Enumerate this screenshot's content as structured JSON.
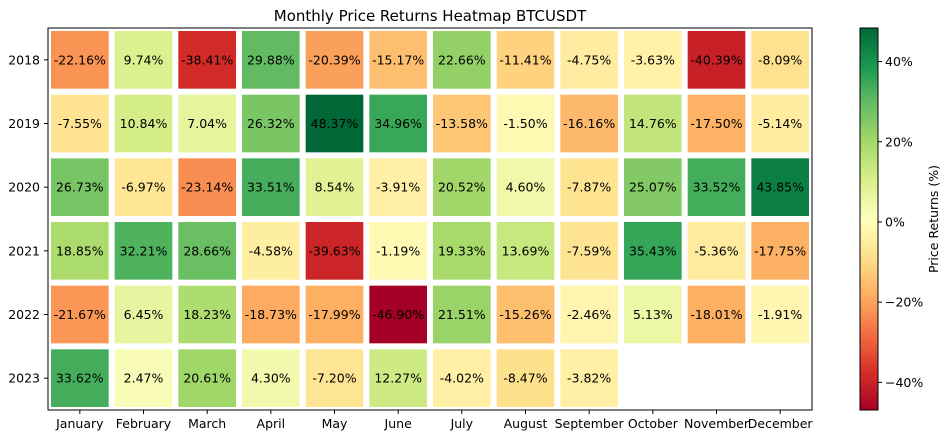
{
  "chart_data": {
    "type": "heatmap",
    "title": "Monthly Price Returns Heatmap BTCUSDT",
    "xlabel": "",
    "ylabel": "",
    "x_categories": [
      "January",
      "February",
      "March",
      "April",
      "May",
      "June",
      "July",
      "August",
      "September",
      "October",
      "November",
      "December"
    ],
    "y_categories": [
      "2018",
      "2019",
      "2020",
      "2021",
      "2022",
      "2023"
    ],
    "values": [
      [
        -22.16,
        9.74,
        -38.41,
        29.88,
        -20.39,
        -15.17,
        22.66,
        -11.41,
        -4.75,
        -3.63,
        -40.39,
        -8.09
      ],
      [
        -7.55,
        10.84,
        7.04,
        26.32,
        48.37,
        34.96,
        -13.58,
        -1.5,
        -16.16,
        14.76,
        -17.5,
        -5.14
      ],
      [
        26.73,
        -6.97,
        -23.14,
        33.51,
        8.54,
        -3.91,
        20.52,
        4.6,
        -7.87,
        25.07,
        33.52,
        43.85
      ],
      [
        18.85,
        32.21,
        28.66,
        -4.58,
        -39.63,
        -1.19,
        19.33,
        13.69,
        -7.59,
        35.43,
        -5.36,
        -17.75
      ],
      [
        -21.67,
        6.45,
        18.23,
        -18.73,
        -17.99,
        -46.9,
        21.51,
        -15.26,
        -2.46,
        5.13,
        -18.01,
        -1.91
      ],
      [
        33.62,
        2.47,
        20.61,
        4.3,
        -7.2,
        12.27,
        -4.02,
        -8.47,
        -3.82,
        null,
        null,
        null
      ]
    ],
    "cell_labels": [
      [
        "-22.16%",
        "9.74%",
        "-38.41%",
        "29.88%",
        "-20.39%",
        "-15.17%",
        "22.66%",
        "-11.41%",
        "-4.75%",
        "-3.63%",
        "-40.39%",
        "-8.09%"
      ],
      [
        "-7.55%",
        "10.84%",
        "7.04%",
        "26.32%",
        "48.37%",
        "34.96%",
        "-13.58%",
        "-1.50%",
        "-16.16%",
        "14.76%",
        "-17.50%",
        "-5.14%"
      ],
      [
        "26.73%",
        "-6.97%",
        "-23.14%",
        "33.51%",
        "8.54%",
        "-3.91%",
        "20.52%",
        "4.60%",
        "-7.87%",
        "25.07%",
        "33.52%",
        "43.85%"
      ],
      [
        "18.85%",
        "32.21%",
        "28.66%",
        "-4.58%",
        "-39.63%",
        "-1.19%",
        "19.33%",
        "13.69%",
        "-7.59%",
        "35.43%",
        "-5.36%",
        "-17.75%"
      ],
      [
        "-21.67%",
        "6.45%",
        "18.23%",
        "-18.73%",
        "-17.99%",
        "-46.90%",
        "21.51%",
        "-15.26%",
        "-2.46%",
        "5.13%",
        "-18.01%",
        "-1.91%"
      ],
      [
        "33.62%",
        "2.47%",
        "20.61%",
        "4.30%",
        "-7.20%",
        "12.27%",
        "-4.02%",
        "-8.47%",
        "-3.82%",
        "",
        "",
        ""
      ]
    ],
    "colorscale": "RdYlGn",
    "color_range": [
      -46.9,
      48.37
    ],
    "colorbar": {
      "label": "Price Returns (%)",
      "ticks": [
        -40,
        -20,
        0,
        20,
        40
      ],
      "tick_labels": [
        "−40%",
        "−20%",
        "0%",
        "20%",
        "40%"
      ]
    }
  }
}
